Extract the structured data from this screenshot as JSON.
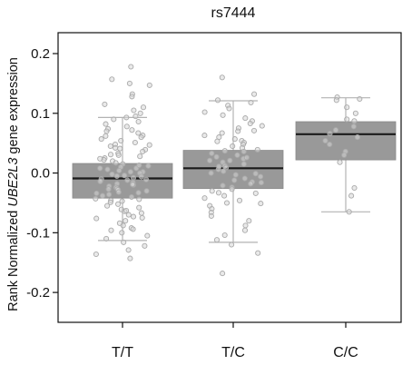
{
  "chart_data": {
    "type": "box",
    "title": "rs7444",
    "ylabel_parts": [
      "Rank Normalized ",
      "UBE2L3",
      " gene expression"
    ],
    "xlabel": "",
    "categories": [
      "T/T",
      "T/C",
      "C/C"
    ],
    "ylim": [
      -0.25,
      0.235
    ],
    "yticks": [
      -0.2,
      -0.1,
      0.0,
      0.1,
      0.2
    ],
    "ytick_labels": [
      "-0.2",
      "-0.1",
      "0.0",
      "0.1",
      "0.2"
    ],
    "grid": false,
    "colors": {
      "box_fill": "#999999",
      "median": "#1a1a1a",
      "whisker": "#b3b3b3",
      "point_stroke": "#aaaaaa"
    },
    "boxes": [
      {
        "category": "T/T",
        "whisker_low": -0.113,
        "q1": -0.042,
        "median": -0.009,
        "q3": 0.016,
        "whisker_high": 0.093
      },
      {
        "category": "T/C",
        "whisker_low": -0.116,
        "q1": -0.026,
        "median": 0.008,
        "q3": 0.038,
        "whisker_high": 0.121
      },
      {
        "category": "C/C",
        "whisker_low": -0.065,
        "q1": 0.022,
        "median": 0.065,
        "q3": 0.086,
        "whisker_high": 0.126
      }
    ],
    "points": [
      {
        "category": "T/T",
        "values": [
          0.178,
          0.157,
          0.15,
          0.147,
          0.132,
          0.128,
          0.115,
          0.11,
          0.105,
          0.1,
          0.095,
          0.09,
          0.086,
          0.082,
          0.078,
          0.074,
          0.07,
          0.067,
          0.063,
          0.06,
          0.057,
          0.054,
          0.051,
          0.048,
          0.045,
          0.042,
          0.039,
          0.036,
          0.033,
          0.03,
          0.028,
          0.025,
          0.022,
          0.02,
          0.017,
          0.015,
          0.012,
          0.01,
          0.008,
          0.006,
          0.004,
          0.002,
          0.0,
          -0.002,
          -0.004,
          -0.006,
          -0.008,
          -0.01,
          -0.012,
          -0.014,
          -0.016,
          -0.018,
          -0.02,
          -0.022,
          -0.024,
          -0.026,
          -0.028,
          -0.03,
          -0.032,
          -0.034,
          -0.036,
          -0.038,
          -0.04,
          -0.043,
          -0.046,
          -0.049,
          -0.052,
          -0.055,
          -0.058,
          -0.061,
          -0.064,
          -0.067,
          -0.07,
          -0.073,
          -0.076,
          -0.08,
          -0.084,
          -0.088,
          -0.092,
          -0.096,
          -0.1,
          -0.105,
          -0.11,
          -0.116,
          -0.122,
          -0.129,
          -0.136,
          -0.143,
          0.002,
          -0.005,
          0.013,
          -0.019,
          0.031,
          -0.033,
          0.047,
          -0.047,
          0.062,
          -0.063,
          0.072,
          -0.075,
          0.093,
          -0.094,
          0.008,
          -0.011,
          0.024,
          -0.027,
          0.041,
          -0.044
        ]
      },
      {
        "category": "T/C",
        "values": [
          0.16,
          0.132,
          0.122,
          0.118,
          0.113,
          0.108,
          0.102,
          0.097,
          0.092,
          0.087,
          0.083,
          0.079,
          0.075,
          0.071,
          0.067,
          0.063,
          0.06,
          0.057,
          0.054,
          0.051,
          0.048,
          0.045,
          0.042,
          0.039,
          0.036,
          0.033,
          0.03,
          0.027,
          0.024,
          0.021,
          0.018,
          0.015,
          0.012,
          0.009,
          0.006,
          0.003,
          0.0,
          -0.003,
          -0.006,
          -0.009,
          -0.012,
          -0.015,
          -0.018,
          -0.021,
          -0.024,
          -0.027,
          -0.03,
          -0.034,
          -0.038,
          -0.042,
          -0.046,
          -0.05,
          -0.055,
          -0.06,
          -0.066,
          -0.072,
          -0.08,
          -0.088,
          -0.096,
          -0.104,
          -0.112,
          -0.12,
          -0.134,
          -0.168,
          0.021,
          -0.001,
          0.037,
          -0.016,
          0.053,
          -0.033,
          0.07,
          -0.051,
          0.011,
          0.026
        ]
      },
      {
        "category": "C/C",
        "values": [
          0.127,
          0.124,
          0.122,
          0.11,
          0.1,
          0.09,
          0.087,
          0.078,
          0.072,
          0.066,
          0.06,
          0.054,
          0.048,
          0.036,
          0.03,
          0.018,
          -0.025,
          -0.038,
          -0.065
        ]
      }
    ]
  }
}
